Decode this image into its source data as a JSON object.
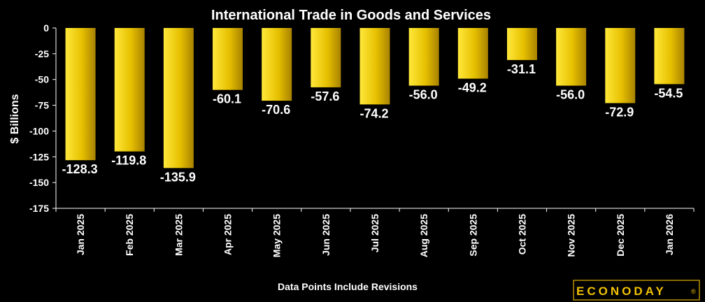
{
  "chart_data": {
    "type": "bar",
    "title": "International Trade in Goods and Services",
    "ylabel": "$ Billions",
    "xlabel": "",
    "categories": [
      "Jan 2025",
      "Feb 2025",
      "Mar 2025",
      "Apr 2025",
      "May 2025",
      "Jun 2025",
      "Jul 2025",
      "Aug 2025",
      "Sep 2025",
      "Oct 2025",
      "Nov 2025",
      "Dec 2025",
      "Jan 2026"
    ],
    "values": [
      -128.3,
      -119.8,
      -135.9,
      -60.1,
      -70.6,
      -57.6,
      -74.2,
      -56.0,
      -49.2,
      -31.1,
      -56.0,
      -72.9,
      -54.5
    ],
    "value_labels": [
      "-128.3",
      "-119.8",
      "-135.9",
      "-60.1",
      "-70.6",
      "-57.6",
      "-74.2",
      "-56.0",
      "-49.2",
      "-31.1",
      "-56.0",
      "-72.9",
      "-54.5"
    ],
    "ylim": [
      -175,
      0
    ],
    "yticks": [
      0,
      -25,
      -50,
      -75,
      -100,
      -125,
      -150,
      -175
    ],
    "grid": false,
    "legend": "none",
    "colors": {
      "background": "#000000",
      "bar_light": "#ffe83a",
      "bar_dark": "#a88200",
      "text": "#ffffff",
      "axis": "#ffffff"
    }
  },
  "footer": {
    "note": "Data Points Include Revisions"
  },
  "brand": {
    "name": "ECONODAY",
    "mark": "®",
    "color": "#f2c200"
  }
}
